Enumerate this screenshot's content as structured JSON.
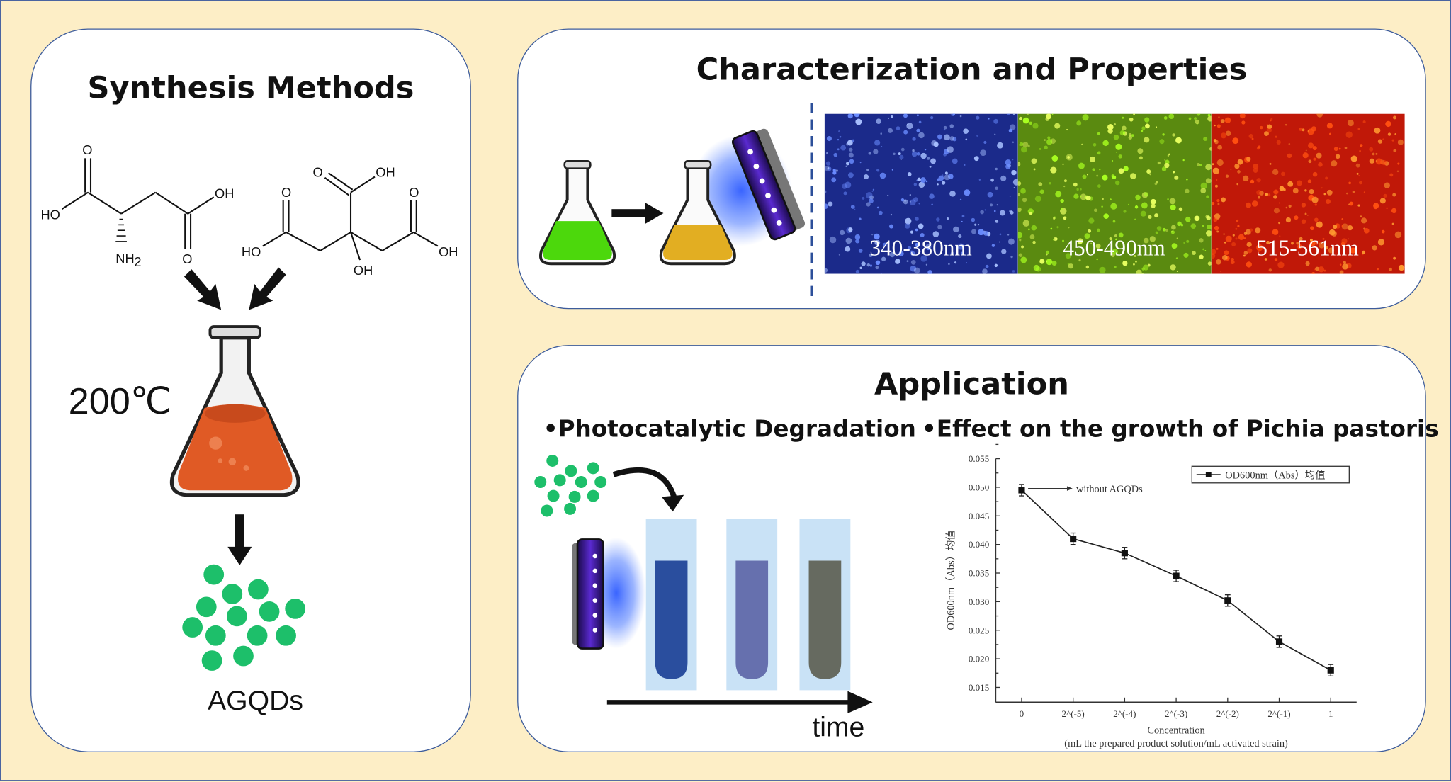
{
  "synthesis": {
    "title": "Synthesis Methods",
    "temperature": "200℃",
    "product": "AGQDs",
    "aspartic_acid": {
      "o_top": "O",
      "ho": "HO",
      "nh2": "NH",
      "nh2_sub": "2",
      "oh": "OH",
      "o_bottom": "O"
    },
    "citric_acid": {
      "ho_left": "HO",
      "o_left": "O",
      "o_top": "O",
      "oh_top": "OH",
      "o_right": "O",
      "oh_right": "OH",
      "oh_bottom": "OH"
    }
  },
  "characterization": {
    "title": "Characterization and Properties",
    "images": [
      {
        "label": "340-380nm",
        "color": "#1b2a8a"
      },
      {
        "label": "450-490nm",
        "color": "#5a8a10"
      },
      {
        "label": "515-561nm",
        "color": "#c01808"
      }
    ],
    "flask_colors": {
      "before": "#4cd80c",
      "after": "#e2ae22"
    }
  },
  "application": {
    "title": "Application",
    "photocatalysis": {
      "heading": "•Photocatalytic Degradation",
      "time_label": "time",
      "tube_colors": [
        "#2a4e9e",
        "#6670ae",
        "#666a60"
      ]
    },
    "growth": {
      "heading": "•Effect on the growth of Pichia pastoris"
    }
  },
  "colors": {
    "dots": "#1dbf6a",
    "border": "#3d5c9c",
    "background": "#fdeec6",
    "uv": "#3a1a8a"
  },
  "chart_data": {
    "type": "line",
    "categories": [
      "0",
      "2^(-5)",
      "2^(-4)",
      "2^(-3)",
      "2^(-2)",
      "2^(-1)",
      "1"
    ],
    "series": [
      {
        "name": "OD600nm（Abs）均值",
        "values": [
          0.0495,
          0.041,
          0.0385,
          0.0345,
          0.0302,
          0.023,
          0.018
        ],
        "error": [
          0.001,
          0.001,
          0.001,
          0.001,
          0.001,
          0.001,
          0.001
        ]
      }
    ],
    "ylabel": "OD600nm（Abs）均值",
    "xlabel": "Concentration",
    "xlabel2": "(mL the prepared product solution/mL activated strain)",
    "ylim": [
      0.0125,
      0.055
    ],
    "yticks": [
      "0.015",
      "0.020",
      "0.025",
      "0.030",
      "0.035",
      "0.040",
      "0.045",
      "0.050",
      "0.055"
    ],
    "annotation": "without AGQDs",
    "legend": "top-right",
    "grid": false
  }
}
